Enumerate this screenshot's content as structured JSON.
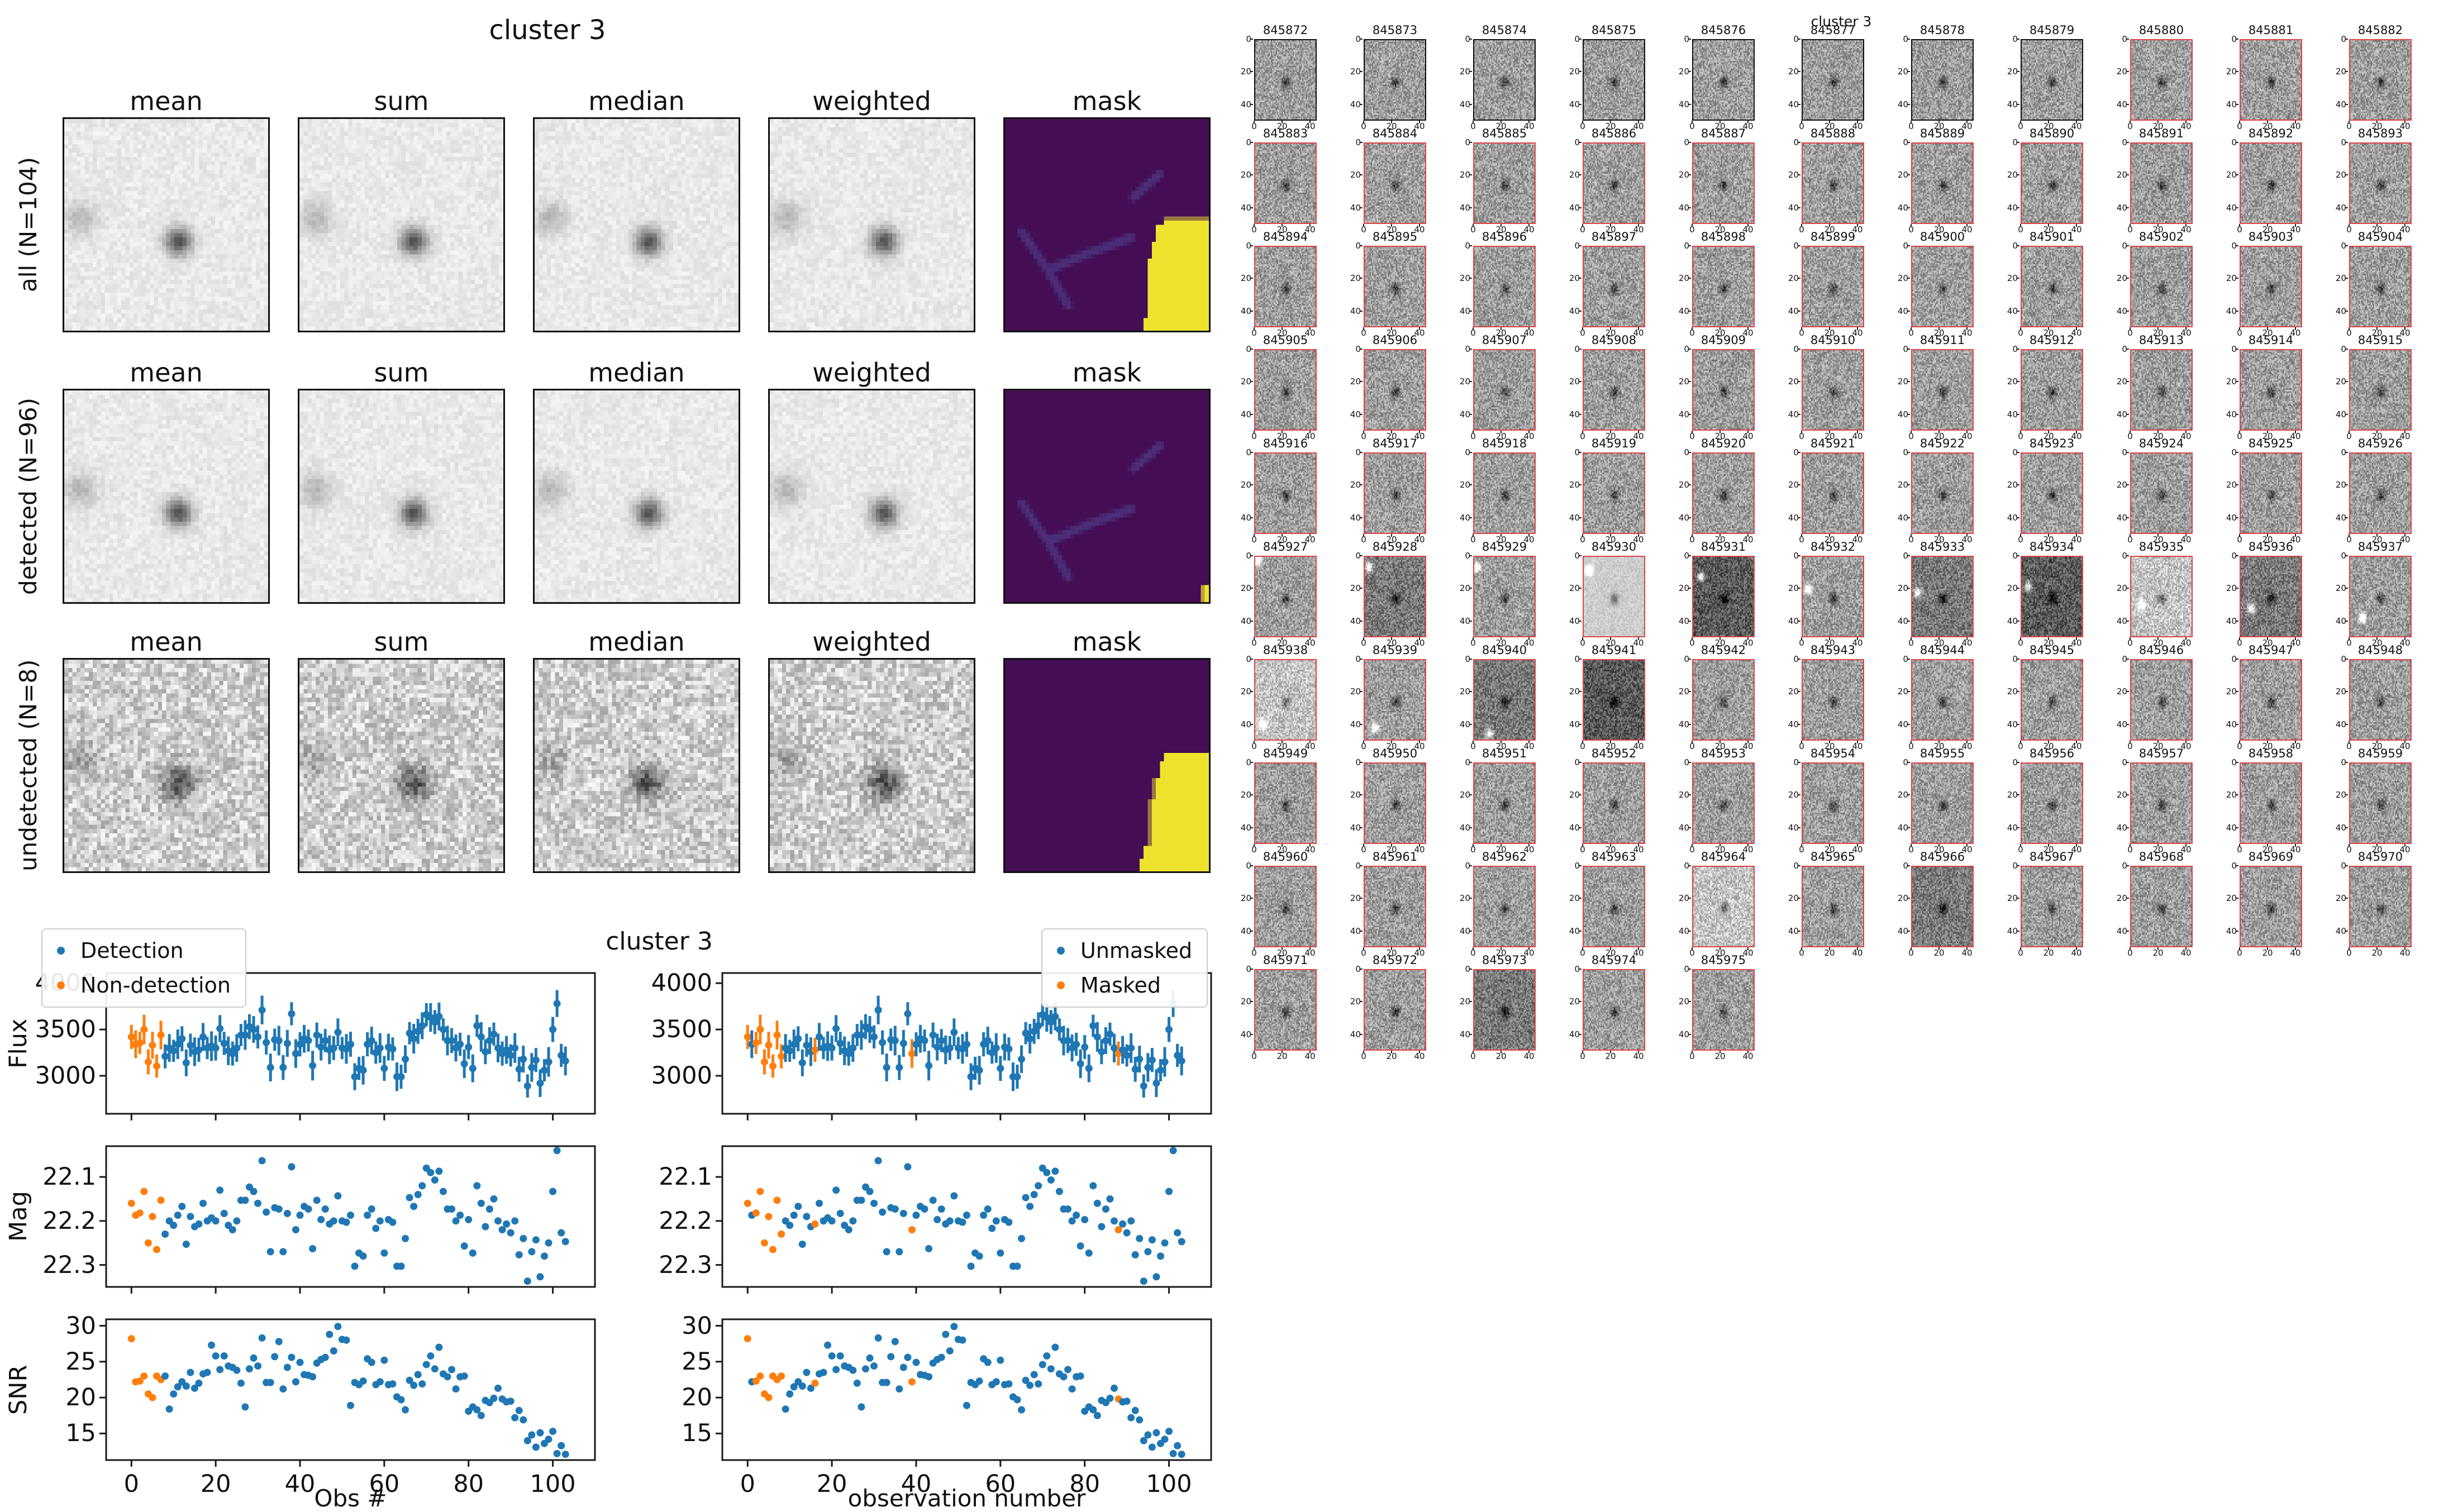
{
  "stamps_figure": {
    "title": "cluster 3",
    "column_headers": [
      "mean",
      "sum",
      "median",
      "weighted",
      "mask"
    ],
    "rows": [
      {
        "label": "all (N=104)",
        "n": 104,
        "mask_shape": "large-yellow",
        "noisy": false
      },
      {
        "label": "detected (N=96)",
        "n": 96,
        "mask_shape": "tiny-yellow",
        "noisy": false
      },
      {
        "label": "undetected (N=8)",
        "n": 8,
        "mask_shape": "large-yellow",
        "noisy": true
      }
    ],
    "mask_colors": {
      "background": "#440d54",
      "streak": "#4b2e78",
      "masked": "#efe22d"
    }
  },
  "scatter_figure": {
    "title": "cluster 3",
    "ylabels": [
      "Flux",
      "Mag",
      "SNR"
    ],
    "xlabel_left": "Obs #",
    "xlabel_right": "observation number",
    "legend_left": [
      {
        "label": "Detection",
        "color": "#1f77b4"
      },
      {
        "label": "Non-detection",
        "color": "#ff7f0e"
      }
    ],
    "legend_right": [
      {
        "label": "Unmasked",
        "color": "#1f77b4"
      },
      {
        "label": "Masked",
        "color": "#ff7f0e"
      }
    ],
    "flux_ticks": [
      "4000",
      "3500",
      "3000"
    ],
    "mag_ticks": [
      "22.1",
      "22.2",
      "22.3"
    ],
    "snr_ticks": [
      "30",
      "25",
      "20",
      "15"
    ],
    "x_ticks": [
      "0",
      "20",
      "40",
      "60",
      "80",
      "100"
    ]
  },
  "grid_figure": {
    "title": "cluster 3",
    "columns": 11,
    "x_ticks": [
      "0",
      "20",
      "40"
    ],
    "y_ticks": [
      "0",
      "20",
      "40"
    ],
    "border_red": "#dd4444",
    "border_black": "#111111",
    "stamp_ids": [
      845872,
      845873,
      845874,
      845875,
      845876,
      845877,
      845878,
      845879,
      845880,
      845881,
      845882,
      845883,
      845884,
      845885,
      845886,
      845887,
      845888,
      845889,
      845890,
      845891,
      845892,
      845893,
      845894,
      845895,
      845896,
      845897,
      845898,
      845899,
      845900,
      845901,
      845902,
      845903,
      845904,
      845905,
      845906,
      845907,
      845908,
      845909,
      845910,
      845911,
      845912,
      845913,
      845914,
      845915,
      845916,
      845917,
      845918,
      845919,
      845920,
      845921,
      845922,
      845923,
      845924,
      845925,
      845926,
      845927,
      845928,
      845929,
      845930,
      845931,
      845932,
      845933,
      845934,
      845935,
      845936,
      845937,
      845938,
      845939,
      845940,
      845941,
      845942,
      845943,
      845944,
      845945,
      845946,
      845947,
      845948,
      845949,
      845950,
      845951,
      845952,
      845953,
      845954,
      845955,
      845956,
      845957,
      845958,
      845959,
      845960,
      845961,
      845962,
      845963,
      845964,
      845965,
      845966,
      845967,
      845968,
      845969,
      845970,
      845971,
      845972,
      845973,
      845974,
      845975
    ],
    "black_border_ids": [
      845872,
      845873,
      845874,
      845875,
      845876,
      845877,
      845878,
      845879
    ],
    "variants": {
      "845927": {
        "shade": "normal",
        "spot": [
          2,
          2
        ]
      },
      "845928": {
        "shade": "dark",
        "spot": [
          3,
          6
        ]
      },
      "845929": {
        "shade": "normal",
        "spot": [
          2,
          6
        ]
      },
      "845930": {
        "shade": "lightsmooth",
        "spot": [
          4,
          8
        ]
      },
      "845931": {
        "shade": "verydark",
        "spot": [
          6,
          12
        ]
      },
      "845932": {
        "shade": "normal",
        "spot": [
          4,
          20
        ]
      },
      "845933": {
        "shade": "dark",
        "spot": [
          4,
          22
        ]
      },
      "845934": {
        "shade": "verydark",
        "spot": [
          5,
          18
        ]
      },
      "845935": {
        "shade": "light",
        "spot": [
          8,
          30
        ]
      },
      "845936": {
        "shade": "dark",
        "spot": [
          8,
          32
        ]
      },
      "845937": {
        "shade": "normal",
        "spot": [
          10,
          38
        ]
      },
      "845938": {
        "shade": "light",
        "spot": [
          6,
          40
        ]
      },
      "845939": {
        "shade": "normal",
        "spot": [
          8,
          42
        ]
      },
      "845940": {
        "shade": "dark",
        "spot": [
          12,
          46
        ]
      },
      "845941": {
        "shade": "verydark",
        "spot": null
      },
      "845964": {
        "shade": "light",
        "spot": null
      },
      "845966": {
        "shade": "dark",
        "spot": null
      },
      "845973": {
        "shade": "dark",
        "spot": null
      }
    }
  },
  "chart_data": {
    "type": "scatter",
    "title": "cluster 3",
    "n_obs": 104,
    "x_is_index": true,
    "panels": [
      {
        "name": "Flux",
        "ylim": [
          2590,
          4110
        ],
        "yticks": [
          4000,
          3500,
          3000
        ],
        "errorbars": true
      },
      {
        "name": "Mag",
        "ylim": [
          22.03,
          22.35
        ],
        "inverted": true,
        "yticks": [
          22.1,
          22.2,
          22.3
        ]
      },
      {
        "name": "SNR",
        "ylim": [
          11.3,
          30.9
        ],
        "yticks": [
          30,
          25,
          20,
          15
        ]
      }
    ],
    "xlim": [
      -6,
      110
    ],
    "xticks": [
      0,
      20,
      40,
      60,
      80,
      100
    ],
    "non_detection_obs": [
      0,
      1,
      2,
      3,
      4,
      5,
      6,
      7
    ],
    "masked_obs": [
      0,
      2,
      3,
      4,
      5,
      6,
      7,
      8,
      16,
      39,
      88
    ],
    "flux": [
      3420,
      3340,
      3355,
      3500,
      3150,
      3330,
      3105,
      3440,
      3210,
      3300,
      3270,
      3340,
      3400,
      3140,
      3330,
      3260,
      3280,
      3420,
      3300,
      3320,
      3300,
      3510,
      3350,
      3270,
      3240,
      3300,
      3440,
      3440,
      3530,
      3500,
      3420,
      3710,
      3360,
      3090,
      3390,
      3380,
      3090,
      3350,
      3670,
      3240,
      3340,
      3400,
      3380,
      3110,
      3440,
      3310,
      3380,
      3280,
      3300,
      3470,
      3300,
      3290,
      3340,
      2990,
      3080,
      3060,
      3340,
      3380,
      3250,
      3300,
      3080,
      3310,
      3290,
      2990,
      2990,
      3180,
      3460,
      3400,
      3480,
      3540,
      3660,
      3630,
      3580,
      3640,
      3500,
      3380,
      3380,
      3300,
      3340,
      3130,
      3310,
      3080,
      3540,
      3420,
      3260,
      3380,
      3450,
      3300,
      3240,
      3280,
      3220,
      3300,
      3070,
      3180,
      2890,
      3090,
      3170,
      2920,
      3060,
      3150,
      3500,
      3780,
      3220,
      3160
    ],
    "flux_err": [
      130,
      150,
      120,
      160,
      135,
      145,
      125,
      155,
      130,
      150,
      120,
      160,
      135,
      145,
      125,
      155,
      130,
      150,
      120,
      160,
      135,
      145,
      125,
      155,
      130,
      150,
      120,
      160,
      135,
      145,
      125,
      155,
      130,
      150,
      120,
      160,
      135,
      145,
      125,
      155,
      130,
      150,
      120,
      160,
      135,
      145,
      125,
      155,
      130,
      150,
      120,
      160,
      135,
      145,
      125,
      155,
      130,
      150,
      120,
      160,
      135,
      145,
      125,
      155,
      130,
      150,
      120,
      160,
      135,
      145,
      125,
      155,
      130,
      150,
      120,
      160,
      135,
      145,
      125,
      155,
      130,
      150,
      120,
      160,
      135,
      145,
      125,
      155,
      130,
      150,
      120,
      160,
      135,
      145,
      125,
      155,
      130,
      150,
      120,
      160,
      135,
      145,
      125,
      155
    ],
    "mag": [
      22.16,
      22.187,
      22.182,
      22.133,
      22.25,
      22.19,
      22.265,
      22.153,
      22.23,
      22.2,
      22.21,
      22.187,
      22.167,
      22.253,
      22.19,
      22.213,
      22.207,
      22.16,
      22.2,
      22.193,
      22.2,
      22.13,
      22.183,
      22.21,
      22.22,
      22.2,
      22.153,
      22.153,
      22.123,
      22.133,
      22.16,
      22.063,
      22.18,
      22.27,
      22.17,
      22.173,
      22.27,
      22.183,
      22.077,
      22.22,
      22.187,
      22.167,
      22.173,
      22.263,
      22.153,
      22.197,
      22.173,
      22.207,
      22.2,
      22.143,
      22.2,
      22.203,
      22.187,
      22.303,
      22.273,
      22.28,
      22.187,
      22.173,
      22.217,
      22.2,
      22.273,
      22.197,
      22.203,
      22.303,
      22.303,
      22.24,
      22.147,
      22.167,
      22.14,
      22.12,
      22.08,
      22.09,
      22.107,
      22.087,
      22.133,
      22.173,
      22.173,
      22.2,
      22.187,
      22.257,
      22.197,
      22.273,
      22.12,
      22.16,
      22.213,
      22.173,
      22.15,
      22.2,
      22.22,
      22.207,
      22.227,
      22.2,
      22.277,
      22.24,
      22.337,
      22.27,
      22.243,
      22.327,
      22.28,
      22.25,
      22.133,
      22.04,
      22.227,
      22.247
    ],
    "snr": [
      28.2,
      22.2,
      22.3,
      23.0,
      20.5,
      20.0,
      23.0,
      22.5,
      23.0,
      18.4,
      20.5,
      21.5,
      22.2,
      21.6,
      23.5,
      21.3,
      22.0,
      23.3,
      23.5,
      27.3,
      25.8,
      23.9,
      25.8,
      24.4,
      24.2,
      23.8,
      22.0,
      18.7,
      24.0,
      25.5,
      24.4,
      28.3,
      22.1,
      22.1,
      25.7,
      27.8,
      21.2,
      24.2,
      25.6,
      22.2,
      24.9,
      23.2,
      23.1,
      22.9,
      24.8,
      25.3,
      25.6,
      28.8,
      26.5,
      29.9,
      28.1,
      28.0,
      18.9,
      22.1,
      21.8,
      22.3,
      25.4,
      24.9,
      21.8,
      22.2,
      25.2,
      21.8,
      21.9,
      20.1,
      19.7,
      18.3,
      22.4,
      21.7,
      23.2,
      21.9,
      24.6,
      25.8,
      24.0,
      27.0,
      23.3,
      22.9,
      23.9,
      21.2,
      22.9,
      23.0,
      18.1,
      18.7,
      18.3,
      17.5,
      19.6,
      19.3,
      19.9,
      21.3,
      19.8,
      19.4,
      19.5,
      17.2,
      18.2,
      16.9,
      14.0,
      14.8,
      13.1,
      15.1,
      13.6,
      14.2,
      15.3,
      12.2,
      13.3,
      12.1
    ]
  }
}
